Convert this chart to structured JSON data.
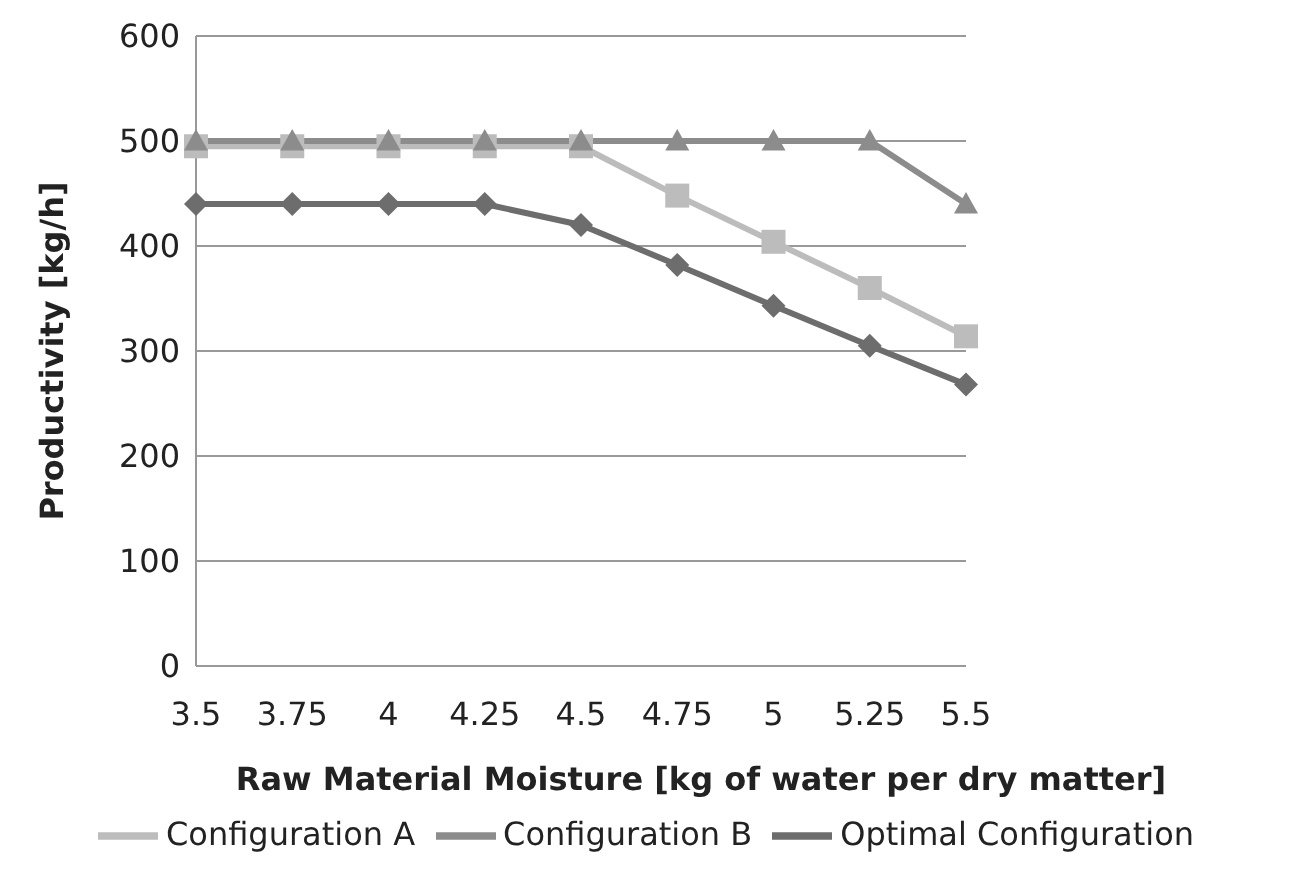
{
  "chart_data": {
    "type": "line",
    "xlabel": "Raw Material Moisture [kg of water per dry matter]",
    "ylabel": "Productivity [kg/h]",
    "categories": [
      "3.5",
      "3.75",
      "4",
      "4.25",
      "4.5",
      "4.75",
      "5",
      "5.25",
      "5.5"
    ],
    "series": [
      {
        "name": "Optimal Configuration",
        "color": "#6d6d6d",
        "marker": "diamond",
        "values": [
          440,
          440,
          440,
          440,
          420,
          382,
          343,
          305,
          268
        ]
      },
      {
        "name": "Configuration A",
        "color": "#bcbcbc",
        "marker": "square",
        "values": [
          495,
          495,
          495,
          495,
          495,
          448,
          404,
          360,
          314
        ]
      },
      {
        "name": "Configuration B",
        "color": "#8c8c8c",
        "marker": "triangle",
        "values": [
          500,
          500,
          500,
          500,
          500,
          500,
          500,
          500,
          440
        ]
      }
    ],
    "ylim": [
      0,
      600
    ],
    "yticks": [
      0,
      100,
      200,
      300,
      400,
      500,
      600
    ],
    "grid": "y",
    "legend": "bottom",
    "line_style": "solid"
  }
}
